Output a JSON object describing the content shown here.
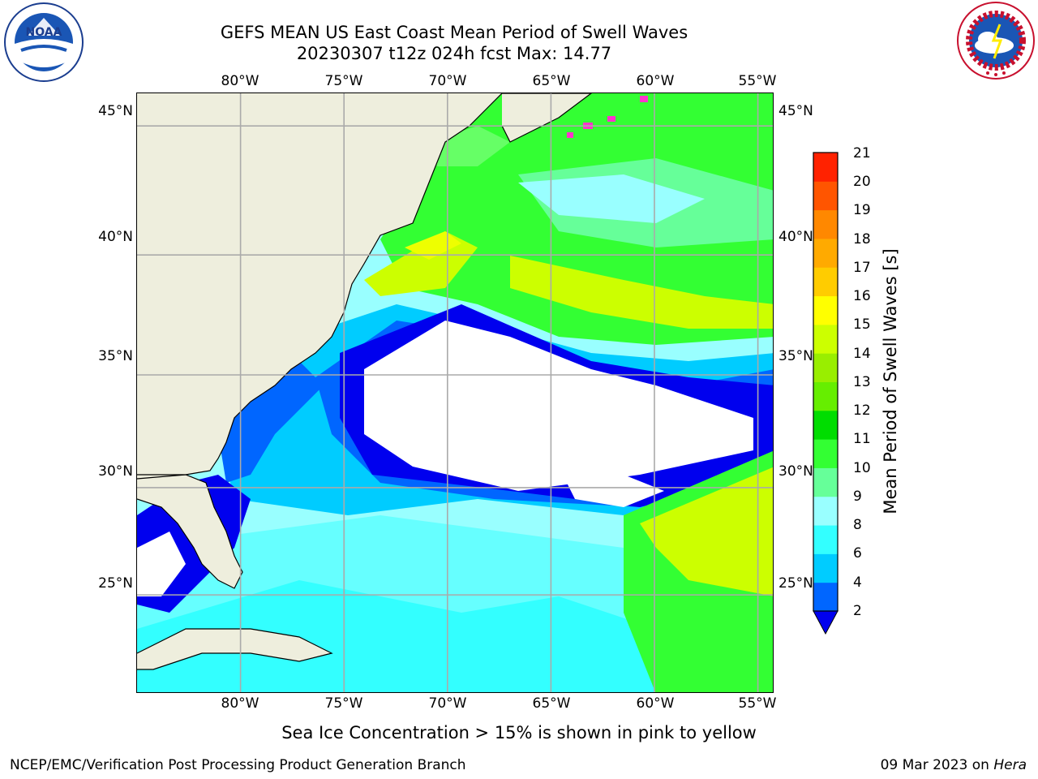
{
  "header": {
    "title_line1": "GEFS MEAN US East Coast Mean Period of Swell Waves",
    "title_line2": "20230307 t12z 024h fcst   Max: 14.77"
  },
  "logos": {
    "noaa": {
      "text": "NOAA",
      "ring_text": "NATIONAL OCEANIC AND ATMOSPHERIC ADMINISTRATION · U.S. DEPARTMENT OF COMMERCE"
    },
    "nws": {
      "ring_text": "NATIONAL WEATHER SERVICE"
    }
  },
  "map": {
    "lon_ticks": [
      "80°W",
      "75°W",
      "70°W",
      "65°W",
      "60°W",
      "55°W"
    ],
    "lat_ticks": [
      "45°N",
      "40°N",
      "35°N",
      "30°N",
      "25°N"
    ],
    "lon_values": [
      -80,
      -75,
      -70,
      -65,
      -60,
      -55
    ],
    "lat_values": [
      45,
      40,
      35,
      30,
      25
    ],
    "extent": {
      "lon_min": -85,
      "lon_max": -54.2,
      "lat_min": 20.2,
      "lat_max": 46.2
    },
    "ice_note": "Sea Ice Concentration > 15% is shown in pink to yellow"
  },
  "colorbar": {
    "label": "Mean Period of Swell Waves [s]",
    "ticks": [
      "2",
      "4",
      "6",
      "8",
      "9",
      "10",
      "11",
      "12",
      "13",
      "14",
      "15",
      "16",
      "17",
      "18",
      "19",
      "20",
      "21"
    ],
    "colors": [
      "#0066ff",
      "#00ccff",
      "#33ffff",
      "#99ffff",
      "#66ff99",
      "#33ff33",
      "#00dd00",
      "#66ee00",
      "#99ee00",
      "#ccff00",
      "#ffff00",
      "#ffcc00",
      "#ffaa00",
      "#ff8800",
      "#ff5500",
      "#ff2200"
    ],
    "extend_color": "#0000ee"
  },
  "footer": {
    "left": "NCEP/EMC/Verification Post Processing Product Generation Branch",
    "right_date": "09 Mar 2023 on",
    "right_host": "Hera"
  }
}
